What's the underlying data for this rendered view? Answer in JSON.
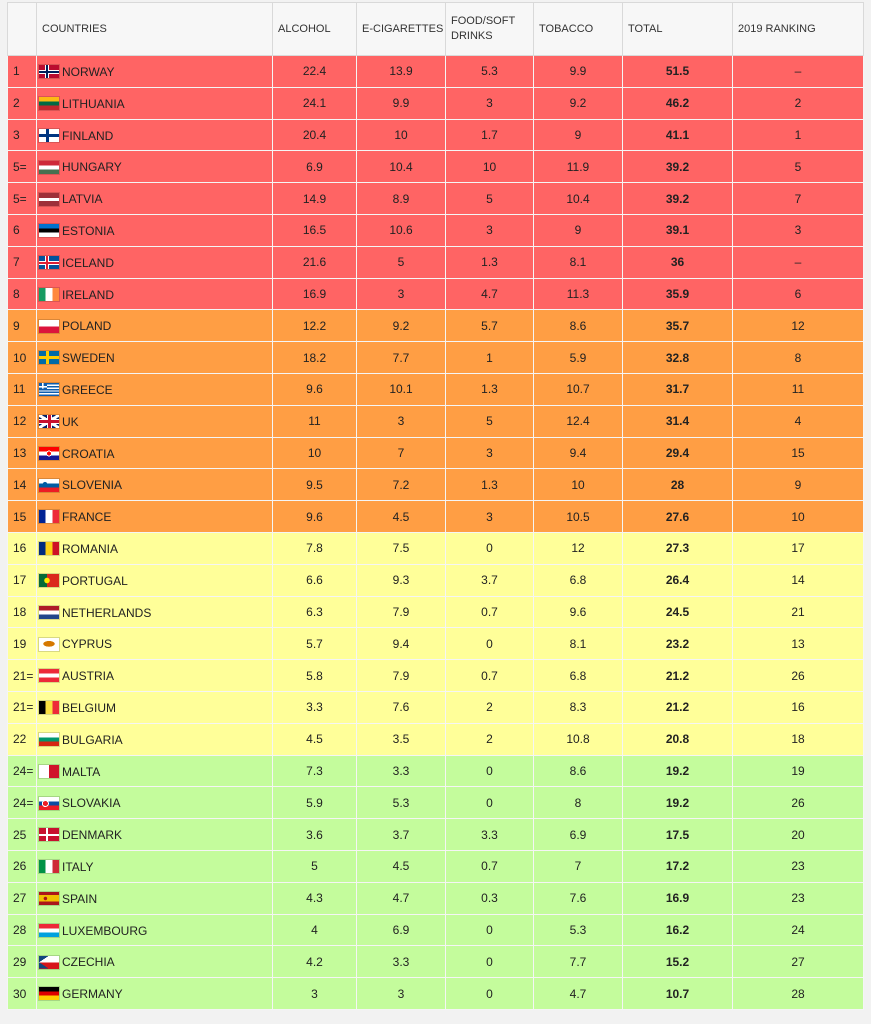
{
  "table": {
    "headers": [
      "",
      "COUNTRIES",
      "ALCOHOL",
      "E-CIGARETTES",
      "FOOD/SOFT DRINKS",
      "TOBACCO",
      "TOTAL",
      "2019 RANKING"
    ],
    "rows": [
      {
        "rank": "1",
        "country": "NORWAY",
        "flag": "norway-flag-icon",
        "alcohol": "22.4",
        "ecig": "13.9",
        "food": "5.3",
        "tobacco": "9.9",
        "total": "51.5",
        "ranking_2019": "–",
        "band": "red"
      },
      {
        "rank": "2",
        "country": "LITHUANIA",
        "flag": "lithuania-flag-icon",
        "alcohol": "24.1",
        "ecig": "9.9",
        "food": "3",
        "tobacco": "9.2",
        "total": "46.2",
        "ranking_2019": "2",
        "band": "red"
      },
      {
        "rank": "3",
        "country": "FINLAND",
        "flag": "finland-flag-icon",
        "alcohol": "20.4",
        "ecig": "10",
        "food": "1.7",
        "tobacco": "9",
        "total": "41.1",
        "ranking_2019": "1",
        "band": "red"
      },
      {
        "rank": "5=",
        "country": "HUNGARY",
        "flag": "hungary-flag-icon",
        "alcohol": "6.9",
        "ecig": "10.4",
        "food": "10",
        "tobacco": "11.9",
        "total": "39.2",
        "ranking_2019": "5",
        "band": "red"
      },
      {
        "rank": "5=",
        "country": "LATVIA",
        "flag": "latvia-flag-icon",
        "alcohol": "14.9",
        "ecig": "8.9",
        "food": "5",
        "tobacco": "10.4",
        "total": "39.2",
        "ranking_2019": "7",
        "band": "red"
      },
      {
        "rank": "6",
        "country": "ESTONIA",
        "flag": "estonia-flag-icon",
        "alcohol": "16.5",
        "ecig": "10.6",
        "food": "3",
        "tobacco": "9",
        "total": "39.1",
        "ranking_2019": "3",
        "band": "red"
      },
      {
        "rank": "7",
        "country": "ICELAND",
        "flag": "iceland-flag-icon",
        "alcohol": "21.6",
        "ecig": "5",
        "food": "1.3",
        "tobacco": "8.1",
        "total": "36",
        "ranking_2019": "–",
        "band": "red"
      },
      {
        "rank": "8",
        "country": "IRELAND",
        "flag": "ireland-flag-icon",
        "alcohol": "16.9",
        "ecig": "3",
        "food": "4.7",
        "tobacco": "11.3",
        "total": "35.9",
        "ranking_2019": "6",
        "band": "red"
      },
      {
        "rank": "9",
        "country": "POLAND",
        "flag": "poland-flag-icon",
        "alcohol": "12.2",
        "ecig": "9.2",
        "food": "5.7",
        "tobacco": "8.6",
        "total": "35.7",
        "ranking_2019": "12",
        "band": "orange"
      },
      {
        "rank": "10",
        "country": "SWEDEN",
        "flag": "sweden-flag-icon",
        "alcohol": "18.2",
        "ecig": "7.7",
        "food": "1",
        "tobacco": "5.9",
        "total": "32.8",
        "ranking_2019": "8",
        "band": "orange"
      },
      {
        "rank": "11",
        "country": "GREECE",
        "flag": "greece-flag-icon",
        "alcohol": "9.6",
        "ecig": "10.1",
        "food": "1.3",
        "tobacco": "10.7",
        "total": "31.7",
        "ranking_2019": "11",
        "band": "orange"
      },
      {
        "rank": "12",
        "country": "UK",
        "flag": "uk-flag-icon",
        "alcohol": "11",
        "ecig": "3",
        "food": "5",
        "tobacco": "12.4",
        "total": "31.4",
        "ranking_2019": "4",
        "band": "orange"
      },
      {
        "rank": "13",
        "country": "CROATIA",
        "flag": "croatia-flag-icon",
        "alcohol": "10",
        "ecig": "7",
        "food": "3",
        "tobacco": "9.4",
        "total": "29.4",
        "ranking_2019": "15",
        "band": "orange"
      },
      {
        "rank": "14",
        "country": "SLOVENIA",
        "flag": "slovenia-flag-icon",
        "alcohol": "9.5",
        "ecig": "7.2",
        "food": "1.3",
        "tobacco": "10",
        "total": "28",
        "ranking_2019": "9",
        "band": "orange"
      },
      {
        "rank": "15",
        "country": "FRANCE",
        "flag": "france-flag-icon",
        "alcohol": "9.6",
        "ecig": "4.5",
        "food": "3",
        "tobacco": "10.5",
        "total": "27.6",
        "ranking_2019": "10",
        "band": "orange"
      },
      {
        "rank": "16",
        "country": "ROMANIA",
        "flag": "romania-flag-icon",
        "alcohol": "7.8",
        "ecig": "7.5",
        "food": "0",
        "tobacco": "12",
        "total": "27.3",
        "ranking_2019": "17",
        "band": "yellow"
      },
      {
        "rank": "17",
        "country": "PORTUGAL",
        "flag": "portugal-flag-icon",
        "alcohol": "6.6",
        "ecig": "9.3",
        "food": "3.7",
        "tobacco": "6.8",
        "total": "26.4",
        "ranking_2019": "14",
        "band": "yellow"
      },
      {
        "rank": "18",
        "country": "NETHERLANDS",
        "flag": "netherlands-flag-icon",
        "alcohol": "6.3",
        "ecig": "7.9",
        "food": "0.7",
        "tobacco": "9.6",
        "total": "24.5",
        "ranking_2019": "21",
        "band": "yellow"
      },
      {
        "rank": "19",
        "country": "CYPRUS",
        "flag": "cyprus-flag-icon",
        "alcohol": "5.7",
        "ecig": "9.4",
        "food": "0",
        "tobacco": "8.1",
        "total": "23.2",
        "ranking_2019": "13",
        "band": "yellow"
      },
      {
        "rank": "21=",
        "country": "AUSTRIA",
        "flag": "austria-flag-icon",
        "alcohol": "5.8",
        "ecig": "7.9",
        "food": "0.7",
        "tobacco": "6.8",
        "total": "21.2",
        "ranking_2019": "26",
        "band": "yellow"
      },
      {
        "rank": "21=",
        "country": "BELGIUM",
        "flag": "belgium-flag-icon",
        "alcohol": "3.3",
        "ecig": "7.6",
        "food": "2",
        "tobacco": "8.3",
        "total": "21.2",
        "ranking_2019": "16",
        "band": "yellow"
      },
      {
        "rank": "22",
        "country": "BULGARIA",
        "flag": "bulgaria-flag-icon",
        "alcohol": "4.5",
        "ecig": "3.5",
        "food": "2",
        "tobacco": "10.8",
        "total": "20.8",
        "ranking_2019": "18",
        "band": "yellow"
      },
      {
        "rank": "24=",
        "country": "MALTA",
        "flag": "malta-flag-icon",
        "alcohol": "7.3",
        "ecig": "3.3",
        "food": "0",
        "tobacco": "8.6",
        "total": "19.2",
        "ranking_2019": "19",
        "band": "green"
      },
      {
        "rank": "24=",
        "country": "SLOVAKIA",
        "flag": "slovakia-flag-icon",
        "alcohol": "5.9",
        "ecig": "5.3",
        "food": "0",
        "tobacco": "8",
        "total": "19.2",
        "ranking_2019": "26",
        "band": "green"
      },
      {
        "rank": "25",
        "country": "DENMARK",
        "flag": "denmark-flag-icon",
        "alcohol": "3.6",
        "ecig": "3.7",
        "food": "3.3",
        "tobacco": "6.9",
        "total": "17.5",
        "ranking_2019": "20",
        "band": "green"
      },
      {
        "rank": "26",
        "country": "ITALY",
        "flag": "italy-flag-icon",
        "alcohol": "5",
        "ecig": "4.5",
        "food": "0.7",
        "tobacco": "7",
        "total": "17.2",
        "ranking_2019": "23",
        "band": "green"
      },
      {
        "rank": "27",
        "country": "SPAIN",
        "flag": "spain-flag-icon",
        "alcohol": "4.3",
        "ecig": "4.7",
        "food": "0.3",
        "tobacco": "7.6",
        "total": "16.9",
        "ranking_2019": "23",
        "band": "green"
      },
      {
        "rank": "28",
        "country": "LUXEMBOURG",
        "flag": "luxembourg-flag-icon",
        "alcohol": "4",
        "ecig": "6.9",
        "food": "0",
        "tobacco": "5.3",
        "total": "16.2",
        "ranking_2019": "24",
        "band": "green"
      },
      {
        "rank": "29",
        "country": "CZECHIA",
        "flag": "czechia-flag-icon",
        "alcohol": "4.2",
        "ecig": "3.3",
        "food": "0",
        "tobacco": "7.7",
        "total": "15.2",
        "ranking_2019": "27",
        "band": "green"
      },
      {
        "rank": "30",
        "country": "GERMANY",
        "flag": "germany-flag-icon",
        "alcohol": "3",
        "ecig": "3",
        "food": "0",
        "tobacco": "4.7",
        "total": "10.7",
        "ranking_2019": "28",
        "band": "green"
      }
    ]
  },
  "band_colors": {
    "red": "#ff6464",
    "orange": "#ff9e44",
    "yellow": "#ffff99",
    "green": "#c4fc9c"
  }
}
